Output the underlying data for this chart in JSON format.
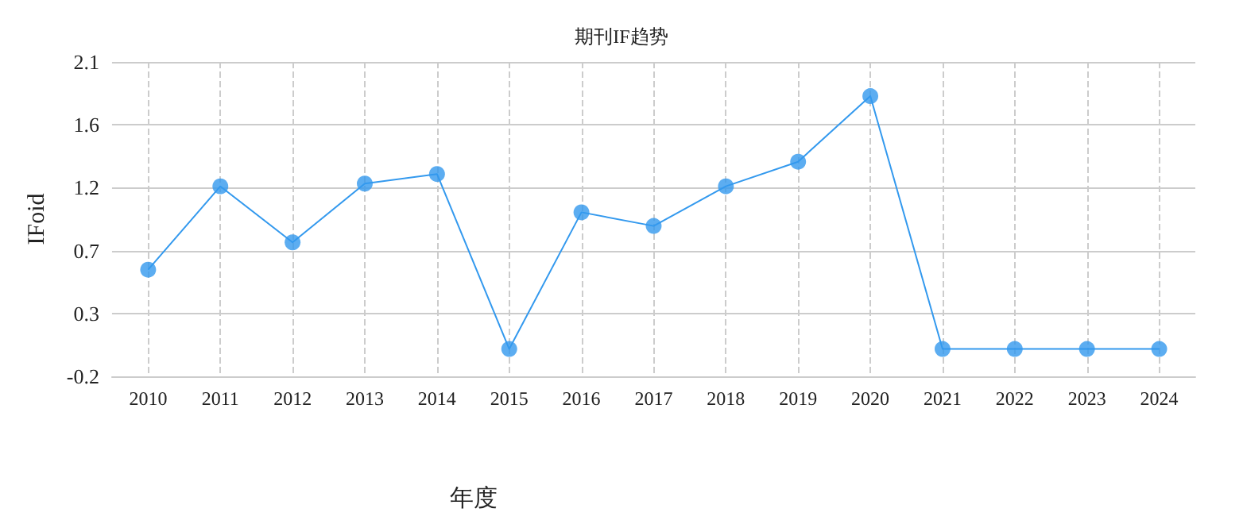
{
  "chart_data": {
    "type": "line",
    "title": "期刊IF趋势",
    "xlabel": "年度",
    "ylabel": "IFoid",
    "categories": [
      "2010",
      "2011",
      "2012",
      "2013",
      "2014",
      "2015",
      "2016",
      "2017",
      "2018",
      "2019",
      "2020",
      "2021",
      "2022",
      "2023",
      "2024"
    ],
    "series": [
      {
        "color": "#3399ee",
        "values": [
          0.58,
          1.19,
          0.78,
          1.21,
          1.28,
          0,
          1.0,
          0.9,
          1.19,
          1.37,
          1.85,
          0,
          0,
          0,
          0
        ]
      }
    ],
    "ylim": [
      -0.2,
      2.1
    ],
    "yticks": [
      -0.2,
      {
        "value": 0.26,
        "label": "0.3"
      },
      {
        "value": 0.72,
        "label": "0.7"
      },
      {
        "value": 1.18,
        "label": "1.2"
      },
      {
        "value": 1.64,
        "label": "1.6"
      },
      2.1
    ],
    "grid": true,
    "marker": "circle",
    "line_style": "solid"
  }
}
